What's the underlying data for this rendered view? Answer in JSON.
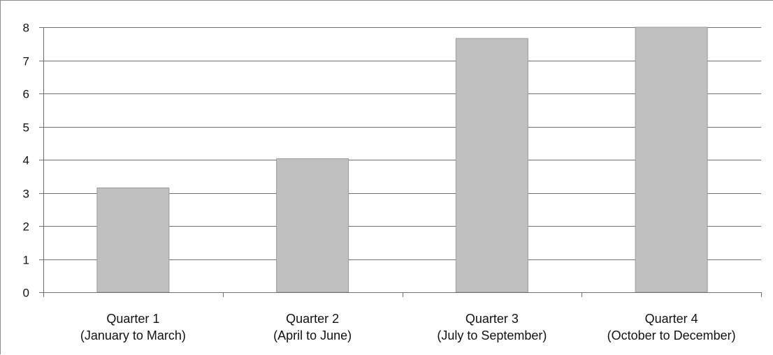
{
  "chart_data": {
    "type": "bar",
    "title": "",
    "xlabel": "",
    "ylabel": "",
    "categories": [
      [
        "Quarter 1",
        "(January to March)"
      ],
      [
        "Quarter 2",
        "(April to June)"
      ],
      [
        "Quarter 3",
        "(July to September)"
      ],
      [
        "Quarter 4",
        "(October to December)"
      ]
    ],
    "values": [
      3.15,
      4.03,
      7.66,
      8.05
    ],
    "ylim": [
      0,
      8
    ],
    "yticks": [
      0,
      1,
      2,
      3,
      4,
      5,
      6,
      7,
      8
    ],
    "grid": true,
    "legend": "none",
    "bar_color": "#c0c0c0",
    "grid_color": "#6e6e6e"
  }
}
